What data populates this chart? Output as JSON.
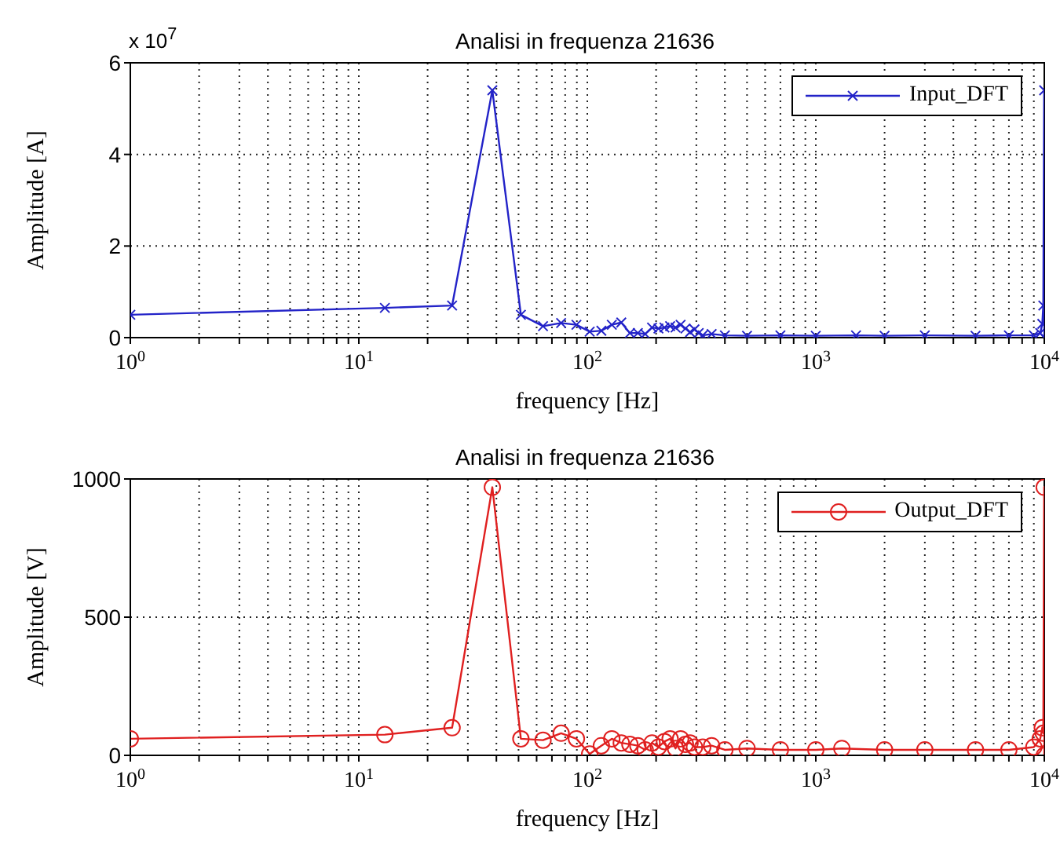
{
  "chart_data": [
    {
      "type": "line",
      "title": "Analisi in frequenza 21636",
      "xlabel": "frequency [Hz]",
      "ylabel": "Amplitude [A]",
      "annotations": [
        "x 10$^{7}$"
      ],
      "log": "x",
      "grid": true,
      "legend": "top right",
      "marker": "cross",
      "line_style": "solid",
      "xlim": [
        1,
        10000
      ],
      "ylim": [
        0,
        6
      ],
      "yticks": [
        0,
        2,
        4,
        6
      ],
      "xticks": [
        {
          "value": 1,
          "label": "10$^{0}$"
        },
        {
          "value": 2,
          "label": null
        },
        {
          "value": 3,
          "label": null
        },
        {
          "value": 4,
          "label": null
        },
        {
          "value": 5,
          "label": null
        },
        {
          "value": 6,
          "label": null
        },
        {
          "value": 7,
          "label": null
        },
        {
          "value": 8,
          "label": null
        },
        {
          "value": 9,
          "label": null
        },
        {
          "value": 10,
          "label": "10$^{1}$"
        },
        {
          "value": 20,
          "label": null
        },
        {
          "value": 30,
          "label": null
        },
        {
          "value": 40,
          "label": null
        },
        {
          "value": 50,
          "label": null
        },
        {
          "value": 60,
          "label": null
        },
        {
          "value": 70,
          "label": null
        },
        {
          "value": 80,
          "label": null
        },
        {
          "value": 90,
          "label": null
        },
        {
          "value": 100,
          "label": "10$^{2}$"
        },
        {
          "value": 200,
          "label": null
        },
        {
          "value": 300,
          "label": null
        },
        {
          "value": 400,
          "label": null
        },
        {
          "value": 500,
          "label": null
        },
        {
          "value": 600,
          "label": null
        },
        {
          "value": 700,
          "label": null
        },
        {
          "value": 800,
          "label": null
        },
        {
          "value": 900,
          "label": null
        },
        {
          "value": 1000,
          "label": "10$^{3}$"
        },
        {
          "value": 2000,
          "label": null
        },
        {
          "value": 3000,
          "label": null
        },
        {
          "value": 4000,
          "label": null
        },
        {
          "value": 5000,
          "label": null
        },
        {
          "value": 6000,
          "label": null
        },
        {
          "value": 7000,
          "label": null
        },
        {
          "value": 8000,
          "label": null
        },
        {
          "value": 9000,
          "label": null
        },
        {
          "value": 10000,
          "label": "10$^{4}$"
        }
      ],
      "x": [
        1,
        13,
        25.6,
        38.4,
        51.2,
        64,
        76.8,
        89.6,
        102.4,
        115.2,
        128,
        140.8,
        153.6,
        166.4,
        179.2,
        192,
        204.8,
        217.6,
        230.4,
        243.2,
        256,
        268.8,
        281.6,
        294.4,
        307.2,
        320,
        350,
        400,
        500,
        700,
        1000,
        1500,
        2000,
        3000,
        5000,
        7000,
        9000,
        9600,
        9800,
        9900,
        9987,
        10000
      ],
      "series": [
        {
          "name": "Input_DFT",
          "color": "#2323c8",
          "values": [
            0.5,
            0.65,
            0.7,
            5.4,
            0.5,
            0.25,
            0.32,
            0.28,
            0.13,
            0.15,
            0.28,
            0.33,
            0.1,
            0.1,
            0.08,
            0.22,
            0.2,
            0.22,
            0.25,
            0.22,
            0.28,
            0.2,
            0.12,
            0.18,
            0.1,
            0.05,
            0.08,
            0.05,
            0.04,
            0.05,
            0.04,
            0.05,
            0.04,
            0.05,
            0.04,
            0.05,
            0.05,
            0.1,
            0.3,
            0.7,
            5.4,
            0
          ]
        }
      ]
    },
    {
      "type": "line",
      "title": "Analisi in frequenza 21636",
      "xlabel": "frequency [Hz]",
      "ylabel": "Amplitude [V]",
      "log": "x",
      "grid": true,
      "legend": "top right",
      "marker": "circle",
      "line_style": "solid",
      "xlim": [
        1,
        10000
      ],
      "ylim": [
        0,
        1000
      ],
      "yticks": [
        0,
        500,
        1000
      ],
      "xticks": [
        {
          "value": 1,
          "label": "10$^{0}$"
        },
        {
          "value": 2,
          "label": null
        },
        {
          "value": 3,
          "label": null
        },
        {
          "value": 4,
          "label": null
        },
        {
          "value": 5,
          "label": null
        },
        {
          "value": 6,
          "label": null
        },
        {
          "value": 7,
          "label": null
        },
        {
          "value": 8,
          "label": null
        },
        {
          "value": 9,
          "label": null
        },
        {
          "value": 10,
          "label": "10$^{1}$"
        },
        {
          "value": 20,
          "label": null
        },
        {
          "value": 30,
          "label": null
        },
        {
          "value": 40,
          "label": null
        },
        {
          "value": 50,
          "label": null
        },
        {
          "value": 60,
          "label": null
        },
        {
          "value": 70,
          "label": null
        },
        {
          "value": 80,
          "label": null
        },
        {
          "value": 90,
          "label": null
        },
        {
          "value": 100,
          "label": "10$^{2}$"
        },
        {
          "value": 200,
          "label": null
        },
        {
          "value": 300,
          "label": null
        },
        {
          "value": 400,
          "label": null
        },
        {
          "value": 500,
          "label": null
        },
        {
          "value": 600,
          "label": null
        },
        {
          "value": 700,
          "label": null
        },
        {
          "value": 800,
          "label": null
        },
        {
          "value": 900,
          "label": null
        },
        {
          "value": 1000,
          "label": "10$^{3}$"
        },
        {
          "value": 2000,
          "label": null
        },
        {
          "value": 3000,
          "label": null
        },
        {
          "value": 4000,
          "label": null
        },
        {
          "value": 5000,
          "label": null
        },
        {
          "value": 6000,
          "label": null
        },
        {
          "value": 7000,
          "label": null
        },
        {
          "value": 8000,
          "label": null
        },
        {
          "value": 9000,
          "label": null
        },
        {
          "value": 10000,
          "label": "10$^{4}$"
        }
      ],
      "x": [
        1,
        13,
        25.6,
        38.4,
        51.2,
        64,
        76.8,
        89.6,
        102.4,
        115.2,
        128,
        140.8,
        153.6,
        166.4,
        179.2,
        192,
        204.8,
        217.6,
        230.4,
        243.2,
        256,
        268.8,
        281.6,
        294.4,
        320,
        350,
        400,
        500,
        700,
        1000,
        1300,
        2000,
        3000,
        5000,
        7000,
        9000,
        9600,
        9800,
        9900,
        9987,
        10000
      ],
      "series": [
        {
          "name": "Output_DFT",
          "color": "#e02020",
          "values": [
            60,
            75,
            100,
            970,
            60,
            55,
            80,
            60,
            5,
            35,
            60,
            45,
            40,
            35,
            20,
            45,
            30,
            50,
            60,
            25,
            60,
            40,
            45,
            30,
            30,
            35,
            20,
            25,
            20,
            20,
            25,
            20,
            20,
            20,
            20,
            30,
            60,
            100,
            80,
            970,
            0
          ]
        }
      ]
    }
  ]
}
